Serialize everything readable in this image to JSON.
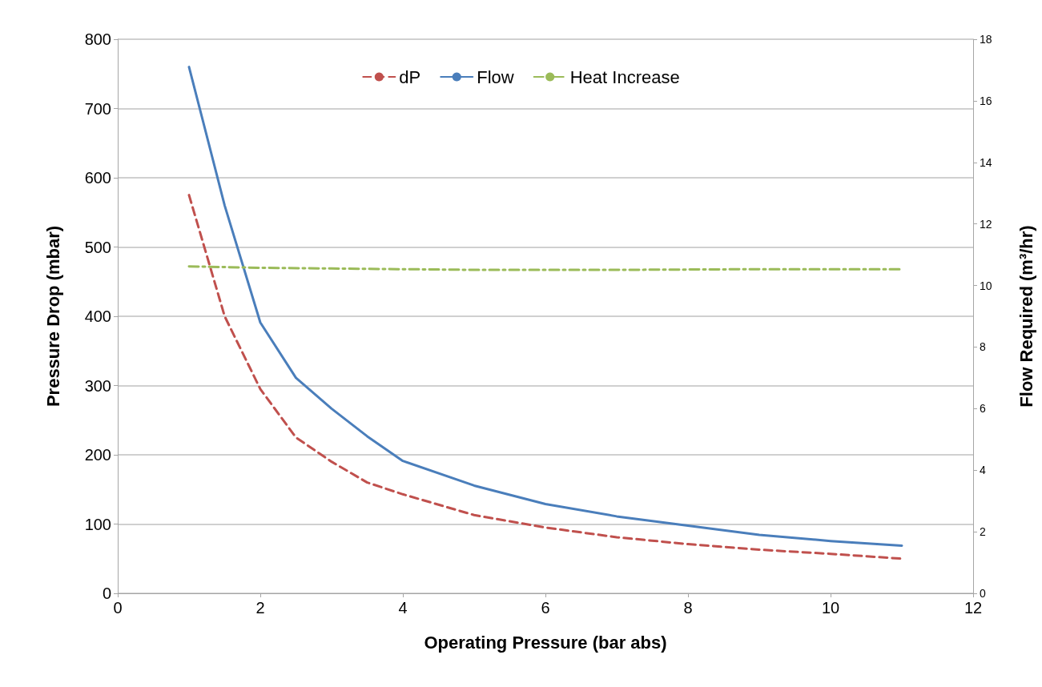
{
  "chart_data": {
    "type": "line",
    "xlabel": "Operating Pressure (bar abs)",
    "ylabel": "Pressure Drop (mbar)",
    "y2label": "Flow Required (m³/hr)",
    "xlim": [
      0,
      12
    ],
    "xticks": [
      0,
      2,
      4,
      6,
      8,
      10,
      12
    ],
    "ylim": [
      0,
      800
    ],
    "yticks": [
      0,
      100,
      200,
      300,
      400,
      500,
      600,
      700,
      800
    ],
    "y2lim": [
      0,
      18
    ],
    "y2ticks": [
      0,
      2,
      4,
      6,
      8,
      10,
      12,
      14,
      16,
      18
    ],
    "grid": "y",
    "legend": "top",
    "marker": "none",
    "series": [
      {
        "name": "dP",
        "color": "#c0504d",
        "line_style": "dashed",
        "axis": "y",
        "x": [
          1,
          1.5,
          2,
          2.5,
          3,
          3.5,
          4,
          5,
          6,
          7,
          8,
          9,
          10,
          11
        ],
        "values": [
          575,
          400,
          295,
          225,
          190,
          160,
          143,
          113,
          95,
          81,
          71,
          63,
          57,
          50
        ]
      },
      {
        "name": "Flow",
        "color": "#4a7ebb",
        "line_style": "solid",
        "axis": "y2",
        "x": [
          1,
          1.5,
          2,
          2.5,
          3,
          3.5,
          4,
          5,
          6,
          7,
          8,
          9,
          10,
          11
        ],
        "values": [
          17.1,
          12.6,
          8.8,
          7.0,
          6.0,
          5.1,
          4.3,
          3.5,
          2.9,
          2.5,
          2.2,
          1.9,
          1.7,
          1.55
        ]
      },
      {
        "name": "Heat Increase",
        "color": "#9bbb59",
        "line_style": "dashdot",
        "axis": "y",
        "x": [
          1,
          2,
          3,
          5,
          7,
          9,
          11
        ],
        "values": [
          472,
          470,
          469,
          467,
          467,
          468,
          468
        ]
      }
    ]
  }
}
